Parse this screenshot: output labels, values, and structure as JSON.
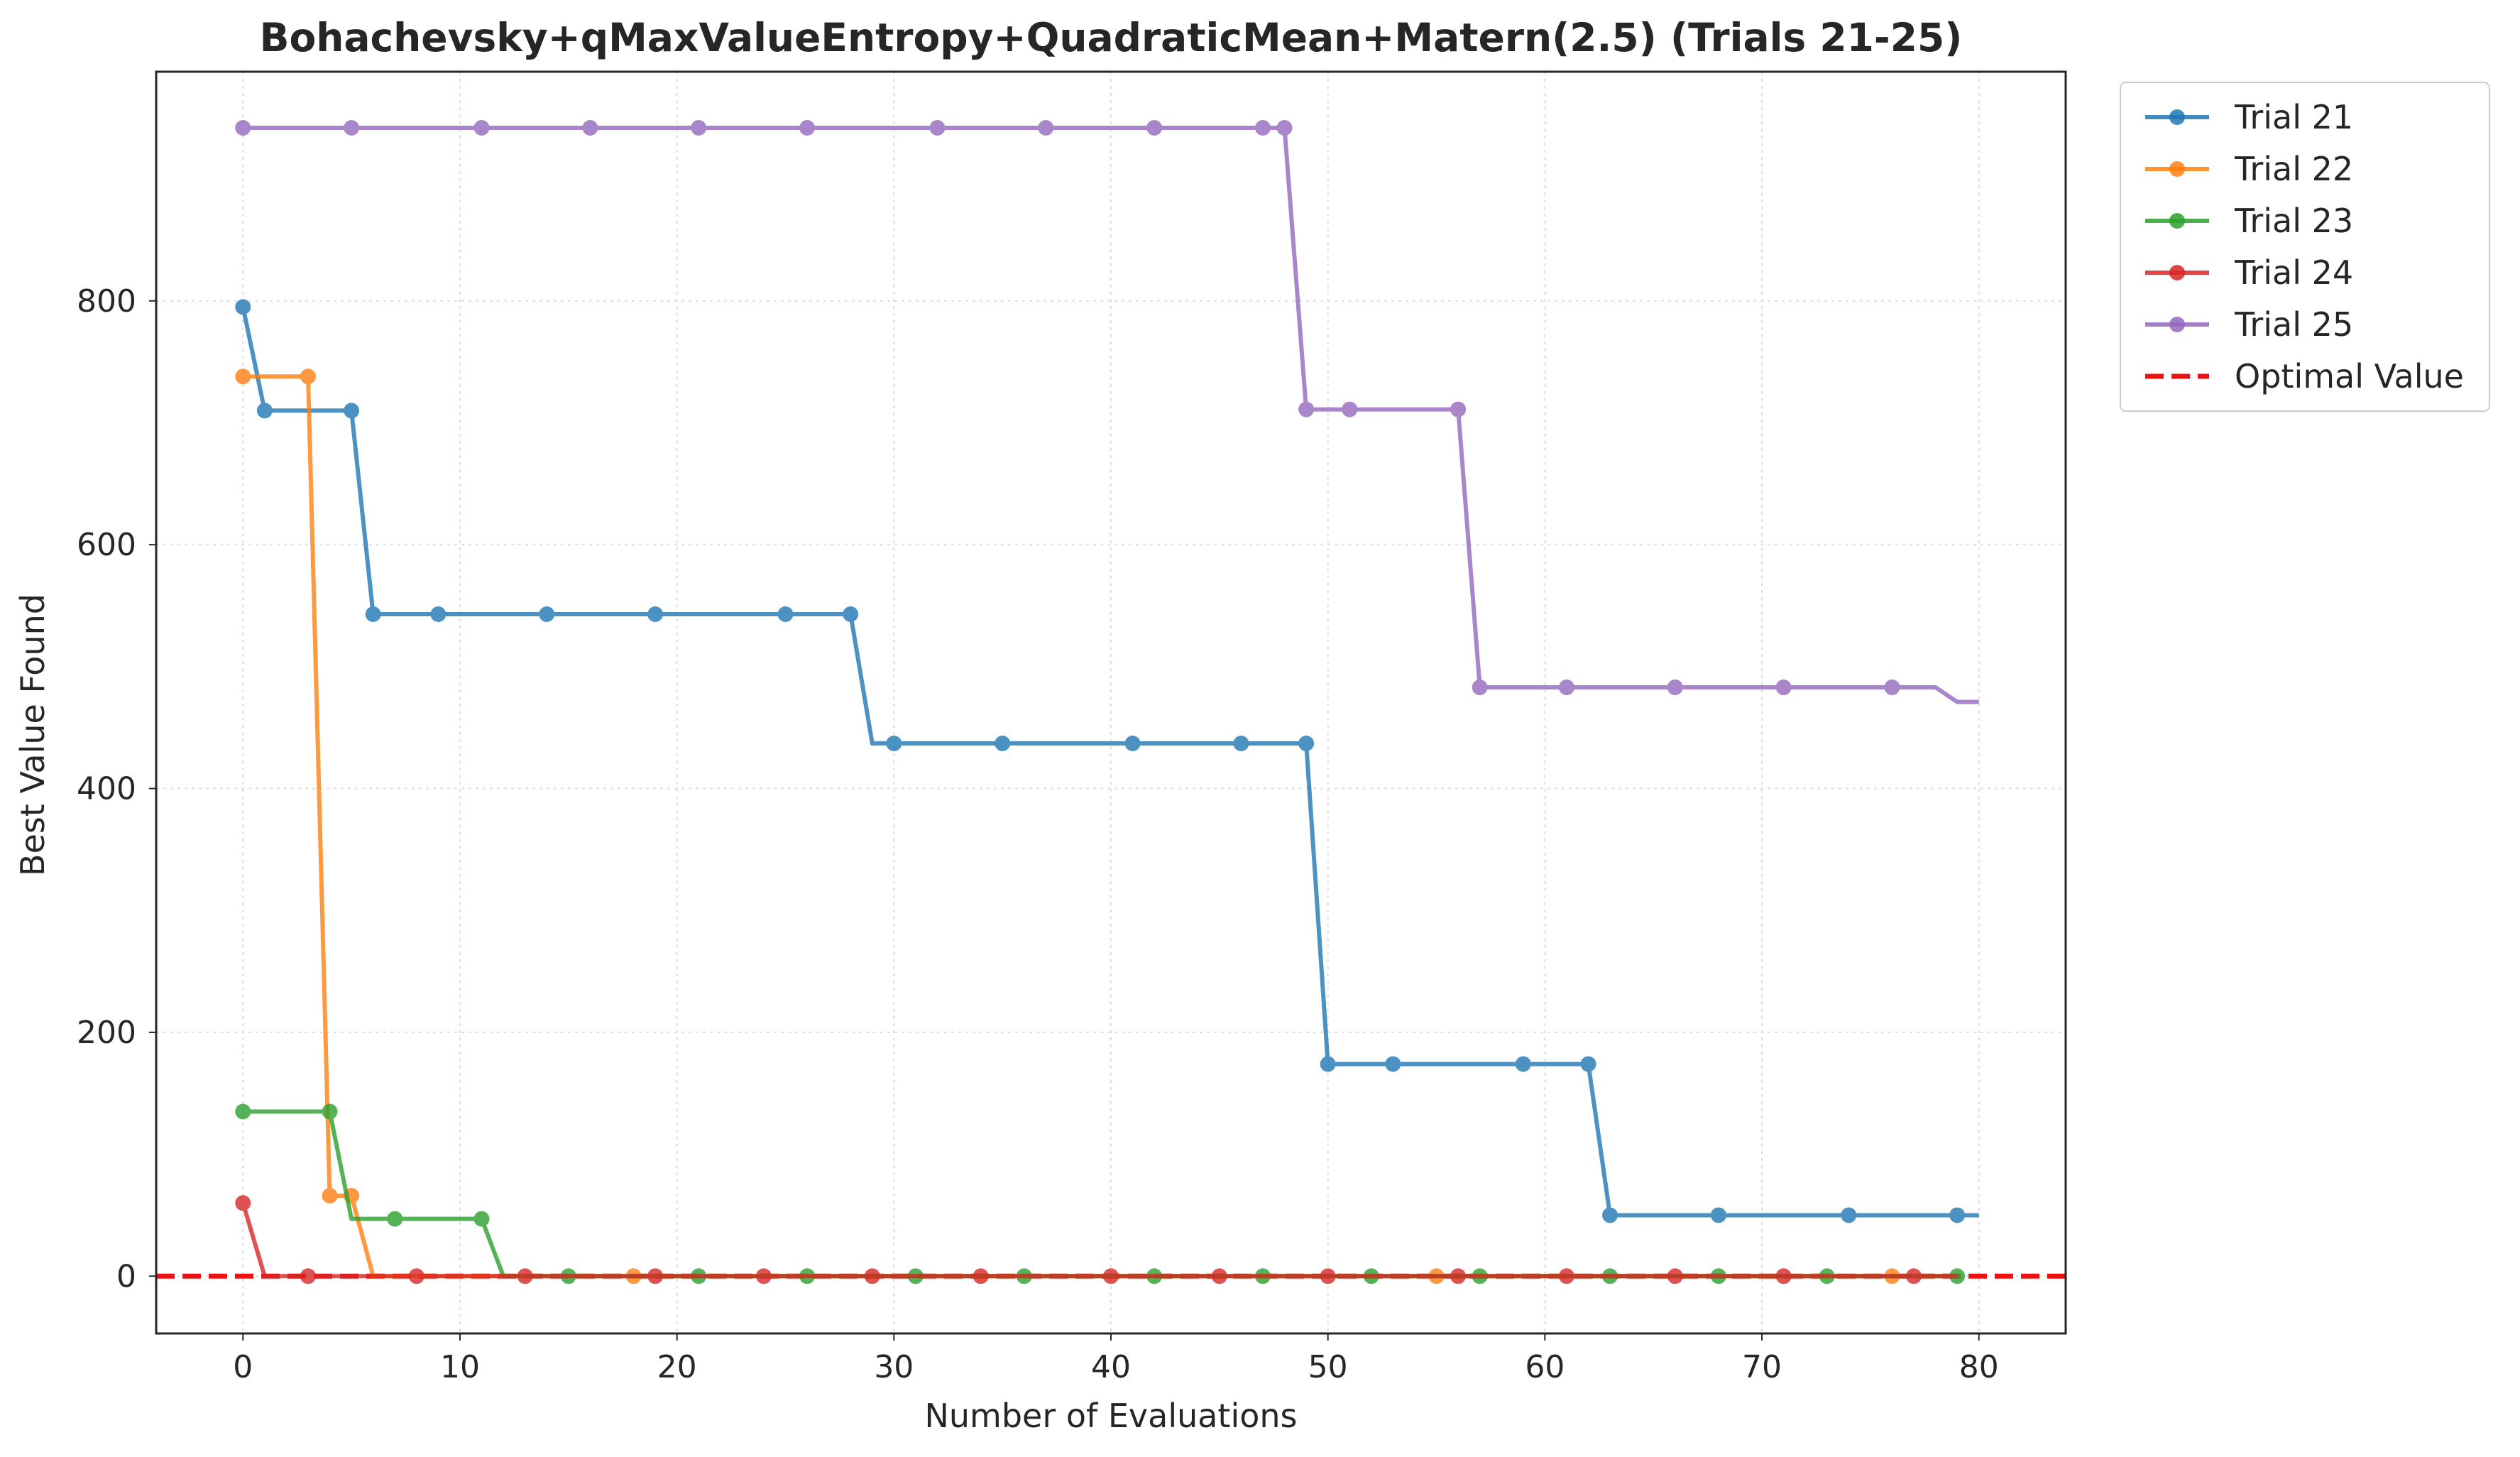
{
  "chart_data": {
    "type": "line",
    "title": "Bohachevsky+qMaxValueEntropy+QuadraticMean+Matern(2.5) (Trials 21-25)",
    "xlabel": "Number of Evaluations",
    "ylabel": "Best Value Found",
    "xlim": [
      -4,
      84
    ],
    "ylim": [
      -47,
      988
    ],
    "xticks": [
      0,
      10,
      20,
      30,
      40,
      50,
      60,
      70,
      80
    ],
    "yticks": [
      0,
      200,
      400,
      600,
      800
    ],
    "grid": true,
    "legend_position": "outside-top-right",
    "series": [
      {
        "name": "Trial 21",
        "color": "#1f77b4",
        "x": [
          0,
          1,
          2,
          3,
          4,
          5,
          6,
          7,
          8,
          9,
          10,
          11,
          12,
          13,
          14,
          15,
          16,
          17,
          18,
          19,
          20,
          21,
          22,
          23,
          24,
          25,
          26,
          27,
          28,
          29,
          30,
          31,
          32,
          33,
          34,
          35,
          36,
          37,
          38,
          39,
          40,
          41,
          42,
          43,
          44,
          45,
          46,
          47,
          48,
          49,
          50,
          51,
          52,
          53,
          54,
          55,
          56,
          57,
          58,
          59,
          60,
          61,
          62,
          63,
          64,
          65,
          66,
          67,
          68,
          69,
          70,
          71,
          72,
          73,
          74,
          75,
          76,
          77,
          78,
          79,
          80
        ],
        "y": [
          795,
          710,
          710,
          710,
          710,
          710,
          543,
          543,
          543,
          543,
          543,
          543,
          543,
          543,
          543,
          543,
          543,
          543,
          543,
          543,
          543,
          543,
          543,
          543,
          543,
          543,
          543,
          543,
          543,
          437,
          437,
          437,
          437,
          437,
          437,
          437,
          437,
          437,
          437,
          437,
          437,
          437,
          437,
          437,
          437,
          437,
          437,
          437,
          437,
          437,
          174,
          174,
          174,
          174,
          174,
          174,
          174,
          174,
          174,
          174,
          174,
          174,
          174,
          50,
          50,
          50,
          50,
          50,
          50,
          50,
          50,
          50,
          50,
          50,
          50,
          50,
          50,
          50,
          50,
          50,
          50
        ],
        "markers_x": [
          0,
          1,
          5,
          6,
          9,
          14,
          19,
          25,
          28,
          30,
          35,
          41,
          46,
          49,
          50,
          53,
          59,
          62,
          63,
          68,
          74,
          79
        ]
      },
      {
        "name": "Trial 22",
        "color": "#ff7f0e",
        "x": [
          0,
          1,
          2,
          3,
          4,
          5,
          6,
          7,
          8,
          9,
          10,
          11,
          12,
          13,
          14,
          15,
          16,
          17,
          18,
          19,
          20,
          21,
          22,
          23,
          24,
          25,
          26,
          27,
          28,
          29,
          30,
          31,
          32,
          33,
          34,
          35,
          36,
          37,
          38,
          39,
          40,
          41,
          42,
          43,
          44,
          45,
          46,
          47,
          48,
          49,
          50,
          51,
          52,
          53,
          54,
          55,
          56,
          57,
          58,
          59,
          60,
          61,
          62,
          63,
          64,
          65,
          66,
          67,
          68,
          69,
          70,
          71,
          72,
          73,
          74,
          75,
          76,
          77,
          78,
          79
        ],
        "y": [
          738,
          738,
          738,
          738,
          66,
          66,
          0,
          0,
          0,
          0,
          0,
          0,
          0,
          0,
          0,
          0,
          0,
          0,
          0,
          0,
          0,
          0,
          0,
          0,
          0,
          0,
          0,
          0,
          0,
          0,
          0,
          0,
          0,
          0,
          0,
          0,
          0,
          0,
          0,
          0,
          0,
          0,
          0,
          0,
          0,
          0,
          0,
          0,
          0,
          0,
          0,
          0,
          0,
          0,
          0,
          0,
          0,
          0,
          0,
          0,
          0,
          0,
          0,
          0,
          0,
          0,
          0,
          0,
          0,
          0,
          0,
          0,
          0,
          0,
          0,
          0,
          0,
          0,
          0,
          0
        ],
        "markers_x": [
          0,
          3,
          4,
          5,
          18,
          55,
          76
        ]
      },
      {
        "name": "Trial 23",
        "color": "#2ca02c",
        "x": [
          0,
          1,
          2,
          3,
          4,
          5,
          6,
          7,
          8,
          9,
          10,
          11,
          12,
          13,
          14,
          15,
          16,
          17,
          18,
          19,
          20,
          21,
          22,
          23,
          24,
          25,
          26,
          27,
          28,
          29,
          30,
          31,
          32,
          33,
          34,
          35,
          36,
          37,
          38,
          39,
          40,
          41,
          42,
          43,
          44,
          45,
          46,
          47,
          48,
          49,
          50,
          51,
          52,
          53,
          54,
          55,
          56,
          57,
          58,
          59,
          60,
          61,
          62,
          63,
          64,
          65,
          66,
          67,
          68,
          69,
          70,
          71,
          72,
          73,
          74,
          75,
          76,
          77,
          78,
          79
        ],
        "y": [
          135,
          135,
          135,
          135,
          135,
          47,
          47,
          47,
          47,
          47,
          47,
          47,
          0,
          0,
          0,
          0,
          0,
          0,
          0,
          0,
          0,
          0,
          0,
          0,
          0,
          0,
          0,
          0,
          0,
          0,
          0,
          0,
          0,
          0,
          0,
          0,
          0,
          0,
          0,
          0,
          0,
          0,
          0,
          0,
          0,
          0,
          0,
          0,
          0,
          0,
          0,
          0,
          0,
          0,
          0,
          0,
          0,
          0,
          0,
          0,
          0,
          0,
          0,
          0,
          0,
          0,
          0,
          0,
          0,
          0,
          0,
          0,
          0,
          0,
          0,
          0,
          0,
          0,
          0,
          0
        ],
        "markers_x": [
          0,
          4,
          7,
          11,
          15,
          21,
          26,
          31,
          36,
          42,
          47,
          52,
          57,
          63,
          68,
          73,
          79
        ]
      },
      {
        "name": "Trial 24",
        "color": "#d62728",
        "x": [
          0,
          1,
          2,
          3,
          4,
          5,
          6,
          7,
          8,
          9,
          10,
          11,
          12,
          13,
          14,
          15,
          16,
          17,
          18,
          19,
          20,
          21,
          22,
          23,
          24,
          25,
          26,
          27,
          28,
          29,
          30,
          31,
          32,
          33,
          34,
          35,
          36,
          37,
          38,
          39,
          40,
          41,
          42,
          43,
          44,
          45,
          46,
          47,
          48,
          49,
          50,
          51,
          52,
          53,
          54,
          55,
          56,
          57,
          58,
          59,
          60,
          61,
          62,
          63,
          64,
          65,
          66,
          67,
          68,
          69,
          70,
          71,
          72,
          73,
          74,
          75,
          76,
          77,
          78,
          79
        ],
        "y": [
          60,
          0,
          0,
          0,
          0,
          0,
          0,
          0,
          0,
          0,
          0,
          0,
          0,
          0,
          0,
          0,
          0,
          0,
          0,
          0,
          0,
          0,
          0,
          0,
          0,
          0,
          0,
          0,
          0,
          0,
          0,
          0,
          0,
          0,
          0,
          0,
          0,
          0,
          0,
          0,
          0,
          0,
          0,
          0,
          0,
          0,
          0,
          0,
          0,
          0,
          0,
          0,
          0,
          0,
          0,
          0,
          0,
          0,
          0,
          0,
          0,
          0,
          0,
          0,
          0,
          0,
          0,
          0,
          0,
          0,
          0,
          0,
          0,
          0,
          0,
          0,
          0,
          0,
          0,
          0
        ],
        "markers_x": [
          0,
          3,
          8,
          13,
          19,
          24,
          29,
          34,
          40,
          45,
          50,
          56,
          61,
          66,
          71,
          77
        ]
      },
      {
        "name": "Trial 25",
        "color": "#9467bd",
        "x": [
          0,
          1,
          2,
          3,
          4,
          5,
          6,
          7,
          8,
          9,
          10,
          11,
          12,
          13,
          14,
          15,
          16,
          17,
          18,
          19,
          20,
          21,
          22,
          23,
          24,
          25,
          26,
          27,
          28,
          29,
          30,
          31,
          32,
          33,
          34,
          35,
          36,
          37,
          38,
          39,
          40,
          41,
          42,
          43,
          44,
          45,
          46,
          47,
          48,
          49,
          50,
          51,
          52,
          53,
          54,
          55,
          56,
          57,
          58,
          59,
          60,
          61,
          62,
          63,
          64,
          65,
          66,
          67,
          68,
          69,
          70,
          71,
          72,
          73,
          74,
          75,
          76,
          77,
          78,
          79,
          80
        ],
        "y": [
          942,
          942,
          942,
          942,
          942,
          942,
          942,
          942,
          942,
          942,
          942,
          942,
          942,
          942,
          942,
          942,
          942,
          942,
          942,
          942,
          942,
          942,
          942,
          942,
          942,
          942,
          942,
          942,
          942,
          942,
          942,
          942,
          942,
          942,
          942,
          942,
          942,
          942,
          942,
          942,
          942,
          942,
          942,
          942,
          942,
          942,
          942,
          942,
          942,
          711,
          711,
          711,
          711,
          711,
          711,
          711,
          711,
          483,
          483,
          483,
          483,
          483,
          483,
          483,
          483,
          483,
          483,
          483,
          483,
          483,
          483,
          483,
          483,
          483,
          483,
          483,
          483,
          483,
          483,
          471,
          471
        ],
        "markers_x": [
          0,
          5,
          11,
          16,
          21,
          26,
          32,
          37,
          42,
          47,
          48,
          49,
          51,
          56,
          57,
          61,
          66,
          71,
          76
        ]
      }
    ],
    "reference_line": {
      "name": "Optimal Value",
      "y": 0,
      "color": "#ee1111",
      "style": "dashed"
    }
  }
}
